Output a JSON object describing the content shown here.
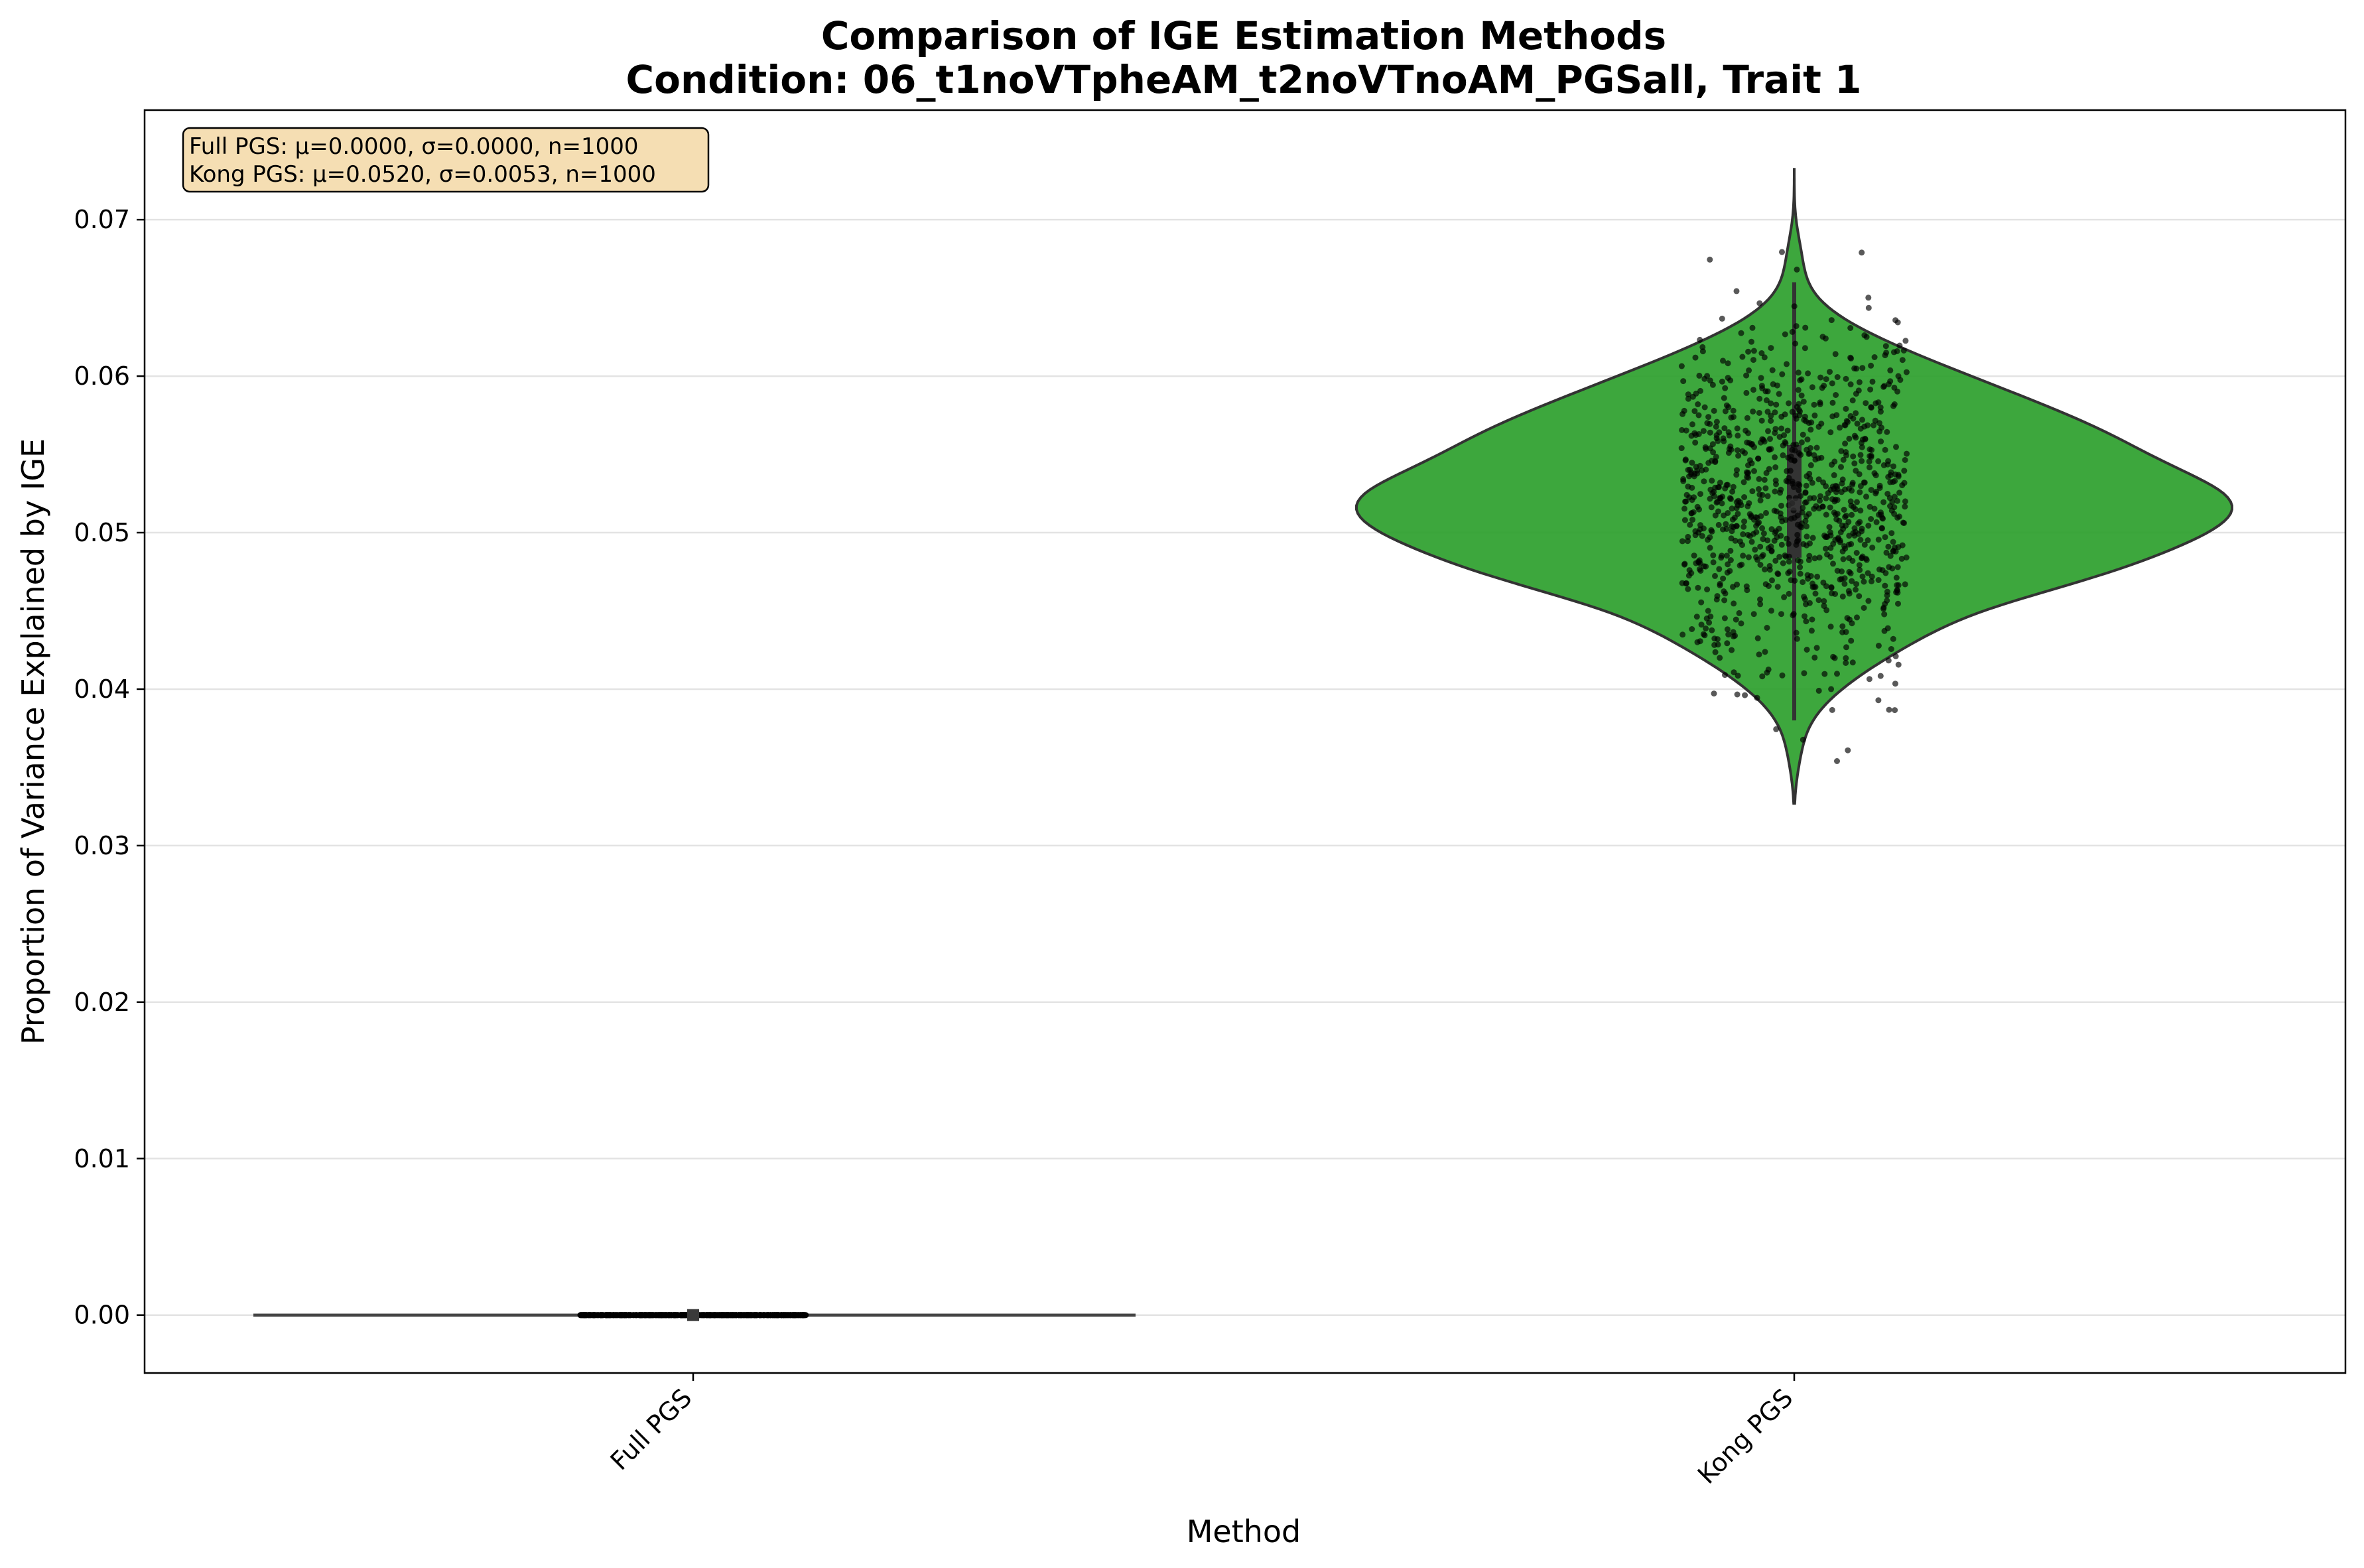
{
  "chart_data": {
    "type": "violin",
    "title": "Comparison of IGE Estimation Methods",
    "subtitle": "Condition: 06_t1noVTpheAM_t2noVTnoAM_PGSall, Trait 1",
    "xlabel": "Method",
    "ylabel": "Proportion of Variance Explained by IGE",
    "ylim": [
      -0.0037,
      0.077
    ],
    "yticks": [
      0.0,
      0.01,
      0.02,
      0.03,
      0.04,
      0.05,
      0.06,
      0.07
    ],
    "ytick_labels": [
      "0.00",
      "0.01",
      "0.02",
      "0.03",
      "0.04",
      "0.05",
      "0.06",
      "0.07"
    ],
    "grid": "horizontal",
    "categories": [
      "Full PGS",
      "Kong PGS"
    ],
    "series": [
      {
        "category": "Full PGS",
        "mean": 0.0,
        "sd": 0.0,
        "n": 1000,
        "min": 0.0,
        "q1": 0.0,
        "median": 0.0,
        "q3": 0.0,
        "max": 0.0,
        "color": "#3a3a3a"
      },
      {
        "category": "Kong PGS",
        "mean": 0.052,
        "sd": 0.0053,
        "n": 1000,
        "min": 0.0354,
        "q1": 0.0484,
        "median": 0.0518,
        "q3": 0.0556,
        "max": 0.0707,
        "violin_range": [
          0.0327,
          0.0733
        ],
        "color": "#2ca02c"
      }
    ],
    "stats_box": [
      "Full PGS: μ=0.0000, σ=0.0000, n=1000",
      "Kong PGS: μ=0.0520, σ=0.0053, n=1000"
    ],
    "stats_box_color": "#f5deb3"
  }
}
